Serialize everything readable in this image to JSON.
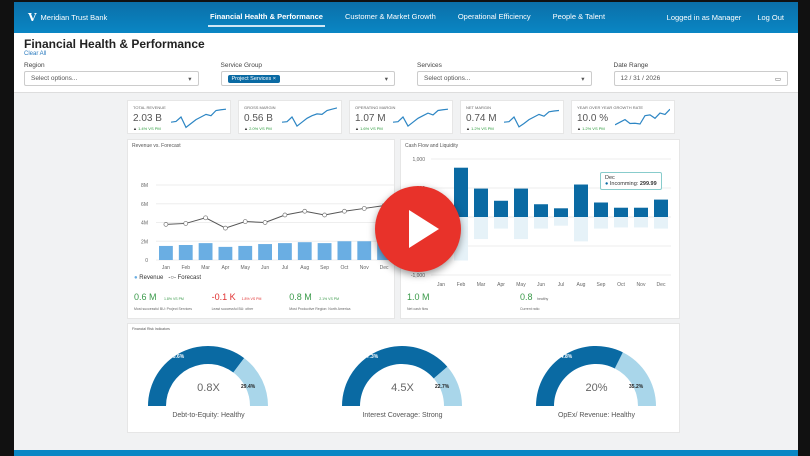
{
  "header": {
    "brand": "Meridian Trust Bank",
    "tabs": [
      "Financial Health & Performance",
      "Customer & Market Growth",
      "Operational Efficiency",
      "People & Talent"
    ],
    "user": "Logged in as Manager",
    "logout": "Log Out"
  },
  "page": {
    "title": "Financial Health & Performance",
    "clear": "Clear All"
  },
  "filters": {
    "region": {
      "label": "Region",
      "placeholder": "Select options..."
    },
    "service_group": {
      "label": "Service Group",
      "chip": "Project Services ×"
    },
    "services": {
      "label": "Services",
      "placeholder": "Select options..."
    },
    "date": {
      "label": "Date Range",
      "value": "12 / 31 / 2026"
    }
  },
  "kpis": [
    {
      "label": "Total Revenue",
      "value": "2.03 B",
      "delta": "1.4% VS PM",
      "spark": [
        3,
        3.3,
        5,
        1,
        2.5,
        4,
        5,
        6,
        5.5,
        7.5,
        7.8,
        8
      ]
    },
    {
      "label": "Gross Margin",
      "value": "0.56 B",
      "delta": "2.0% VS PM",
      "spark": [
        3,
        3.2,
        5,
        1.5,
        3,
        4.5,
        5.5,
        6.2,
        6,
        7.5,
        8,
        8.5
      ]
    },
    {
      "label": "Operating Margin",
      "value": "1.07 M",
      "delta": "1.6% VS PM",
      "spark": [
        3,
        3.2,
        5,
        1.5,
        3,
        4.5,
        5.5,
        6.5,
        5.8,
        7.5,
        7.8,
        8
      ]
    },
    {
      "label": "Net Margin",
      "value": "0.74 M",
      "delta": "1.2% VS PM",
      "spark": [
        3,
        3.2,
        5,
        1.2,
        2.5,
        4,
        5,
        6,
        5.3,
        7,
        7.3,
        7.5
      ]
    },
    {
      "label": "Year Over Year Growth Rate",
      "value": "10.0 %",
      "delta": "1.2% VS PM",
      "spark": [
        2,
        3,
        4,
        2.5,
        2.6,
        2.3,
        5.5,
        5.8,
        4.5,
        6.5,
        6,
        8
      ]
    }
  ],
  "chart_data": [
    {
      "type": "bar",
      "title": "Revenue vs. Forecast",
      "categories": [
        "Jan",
        "Feb",
        "Mar",
        "Apr",
        "May",
        "Jun",
        "Jul",
        "Aug",
        "Sep",
        "Oct",
        "Nov",
        "Dec"
      ],
      "yticks": [
        "0",
        "2M",
        "4M",
        "6M",
        "8M"
      ],
      "ylim": [
        0,
        8
      ],
      "series": [
        {
          "name": "Revenue",
          "type": "bar",
          "values": [
            1.5,
            1.6,
            1.8,
            1.4,
            1.5,
            1.7,
            1.8,
            1.9,
            1.8,
            2.0,
            2.0,
            2.0
          ]
        },
        {
          "name": "Forecast",
          "type": "line",
          "values": [
            3.8,
            3.9,
            4.5,
            3.4,
            4.1,
            4.0,
            4.8,
            5.2,
            4.8,
            5.2,
            5.5,
            5.8
          ]
        }
      ],
      "legend": [
        "Revenue",
        "Forecast"
      ]
    },
    {
      "type": "bar",
      "title": "Cash Flow and Liquidity",
      "categories": [
        "Jan",
        "Feb",
        "Mar",
        "Apr",
        "May",
        "Jun",
        "Jul",
        "Aug",
        "Sep",
        "Oct",
        "Nov",
        "Dec"
      ],
      "yticks": [
        "1,000",
        "500",
        "0",
        "-500",
        "-1,000"
      ],
      "ylim": [
        -1000,
        1000
      ],
      "series": [
        {
          "name": "Incomming",
          "values": [
            280,
            850,
            490,
            280,
            490,
            220,
            150,
            560,
            250,
            160,
            160,
            299.99
          ]
        },
        {
          "name": "Outgoing",
          "values": [
            -200,
            -750,
            -380,
            -200,
            -380,
            -200,
            -150,
            -420,
            -200,
            -180,
            -180,
            -200
          ]
        }
      ],
      "tooltip": {
        "title": "Dec",
        "label": "Incomming:",
        "value": "299.99"
      }
    }
  ],
  "revenue_stats": [
    {
      "value": "0.6 M",
      "delta": "1.8% VS PM",
      "label": "Most successful BU: Project Services",
      "tone": "g"
    },
    {
      "value": "-0.1 K",
      "delta": "1.8% VS PM",
      "label": "Least successful BU: other",
      "tone": "r"
    },
    {
      "value": "0.8 M",
      "delta": "2.1% VS PM",
      "label": "Most Productive Region: North America",
      "tone": "g"
    }
  ],
  "cash_stats": [
    {
      "value": "1.0 M",
      "label": "Net cash flow"
    },
    {
      "value": "0.8",
      "note": "healthy",
      "label": "Current ratio"
    }
  ],
  "risk": {
    "title": "Financial Risk Indicators",
    "gauges": [
      {
        "value": "0.8X",
        "label": "Debt-to-Equity: Healthy",
        "pct": 70.6,
        "a": "70.6%",
        "b": "29.4%"
      },
      {
        "value": "4.5X",
        "label": "Interest Coverage: Strong",
        "pct": 77.3,
        "a": "77.3%",
        "b": "22.7%"
      },
      {
        "value": "20%",
        "label": "OpEx/ Revenue: Healthy",
        "pct": 64.8,
        "a": "64.8%",
        "b": "35.2%"
      }
    ]
  },
  "colors": {
    "primary": "#0a6aa3",
    "light": "#a9d6ea",
    "bar": "#6aaee3"
  }
}
